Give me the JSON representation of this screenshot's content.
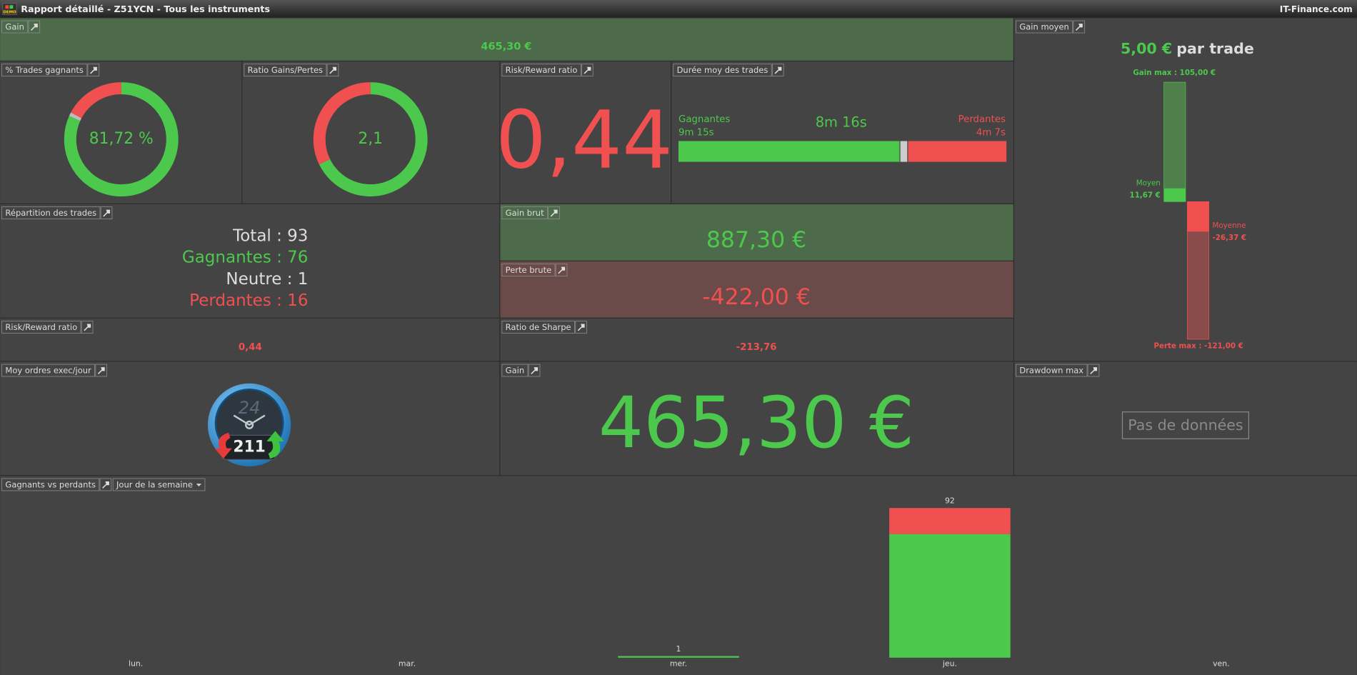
{
  "window": {
    "title": "Rapport détaillé - Z51YCN - Tous les instruments",
    "brand": "IT-Finance.com",
    "badge": "DEMO"
  },
  "gain_top": {
    "label": "Gain",
    "value": "465,30 €"
  },
  "win_rate": {
    "label": "% Trades gagnants",
    "value": "81,72 %",
    "segments": [
      76,
      1,
      16
    ]
  },
  "gain_loss_ratio": {
    "label": "Ratio Gains/Pertes",
    "value": "2,1",
    "segments": [
      887.3,
      422
    ]
  },
  "risk_reward": {
    "label": "Risk/Reward ratio",
    "value": "0,44"
  },
  "duration": {
    "label": "Durée moy des trades",
    "average": "8m 16s",
    "win_label": "Gagnantes",
    "win_value": "9m 15s",
    "loss_label": "Perdantes",
    "loss_value": "4m 7s",
    "seconds": [
      555,
      247
    ]
  },
  "distribution": {
    "label": "Répartition des trades",
    "lines": [
      "Total : 93",
      "Gagnantes : 76",
      "Neutre : 1",
      "Perdantes : 16"
    ]
  },
  "gross_gain": {
    "label": "Gain brut",
    "value": "887,30 €"
  },
  "gross_loss": {
    "label": "Perte brute",
    "value": "-422,00 €"
  },
  "risk_reward_small": {
    "label": "Risk/Reward ratio",
    "value": "0,44"
  },
  "sharpe": {
    "label": "Ratio de Sharpe",
    "value": "-213,76"
  },
  "orders": {
    "label": "Moy ordres exec/jour",
    "clock": "24",
    "value": "211"
  },
  "gain_big": {
    "label": "Gain",
    "value": "465,30 €"
  },
  "drawdown": {
    "label": "Drawdown max",
    "message": "Pas de données"
  },
  "average_gain": {
    "label": "Gain moyen",
    "value": "5,00 €",
    "unit": "par trade",
    "max_label": "Gain max : 105,00 €",
    "avg_win_label": "Moyen",
    "avg_win_value": "11,67 €",
    "avg_loss_label": "Moyenne",
    "avg_loss_value": "-26,37 €",
    "min_label": "Perte max : -121,00 €",
    "levels": {
      "max": 105,
      "avg_win": 11.67,
      "avg_loss": -26.37,
      "min": -121
    }
  },
  "chart_data": {
    "type": "bar",
    "title": "Gagnants vs perdants",
    "selector": "Jour de la semaine",
    "categories": [
      "lun.",
      "mar.",
      "mer.",
      "jeu.",
      "ven."
    ],
    "series": [
      {
        "color": "#4cc94c",
        "values": [
          null,
          null,
          1,
          76,
          null
        ]
      },
      {
        "color": "#f05050",
        "values": [
          null,
          null,
          null,
          16,
          null
        ]
      }
    ],
    "totals": [
      null,
      null,
      1,
      92,
      null
    ],
    "ylim": [
      0,
      100
    ]
  }
}
